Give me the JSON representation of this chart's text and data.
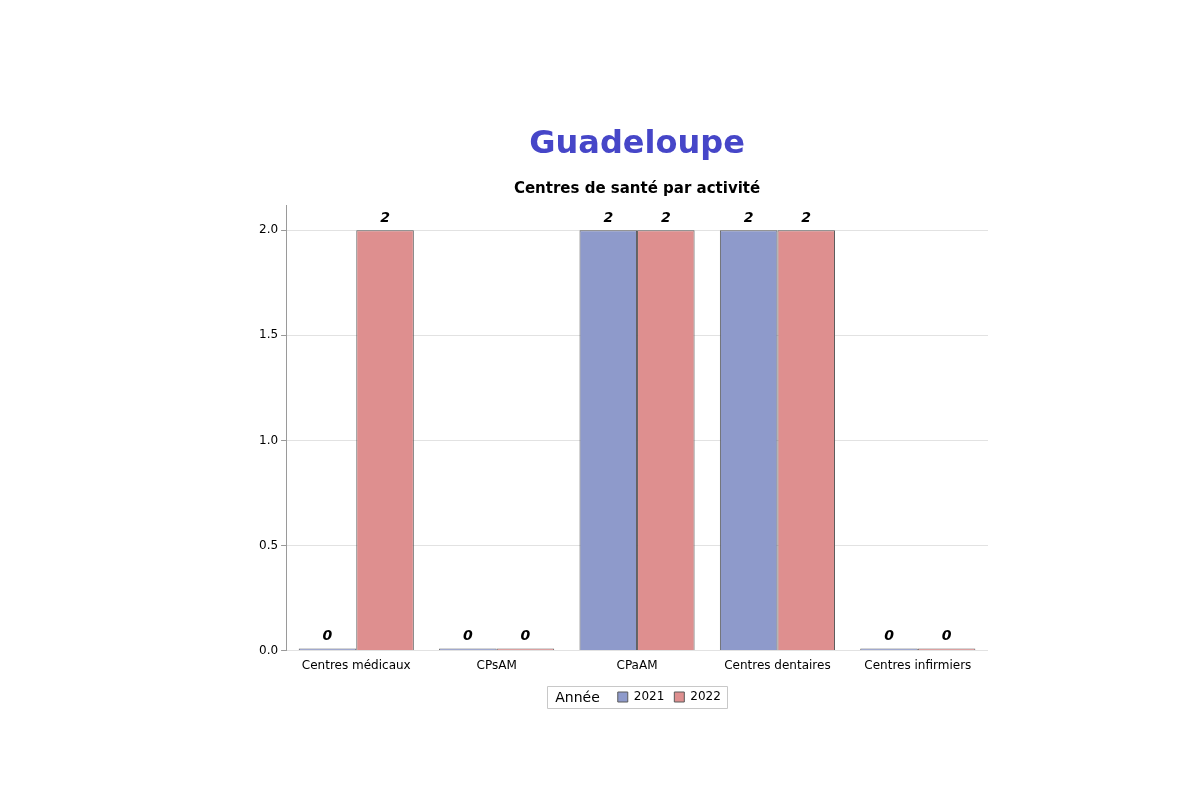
{
  "chart_data": {
    "type": "bar",
    "title": "Guadeloupe",
    "subtitle": "Centres de santé par activité",
    "categories": [
      "Centres médicaux",
      "CPsAM",
      "CPaAM",
      "Centres dentaires",
      "Centres infirmiers"
    ],
    "series": [
      {
        "name": "2021",
        "color": "#8e9acb",
        "values": [
          0,
          0,
          2,
          2,
          0
        ]
      },
      {
        "name": "2022",
        "color": "#de8f8f",
        "values": [
          2,
          0,
          2,
          2,
          0
        ]
      }
    ],
    "ylim": [
      0,
      2.12
    ],
    "yticks": [
      {
        "value": 0,
        "label": "0.0"
      },
      0.5,
      {
        "value": 1,
        "label": "1.0"
      },
      1.5,
      {
        "value": 2,
        "label": "2.0"
      }
    ],
    "grid": "y",
    "legend": "bottom",
    "legend_title": "Année",
    "data_labels": true
  }
}
